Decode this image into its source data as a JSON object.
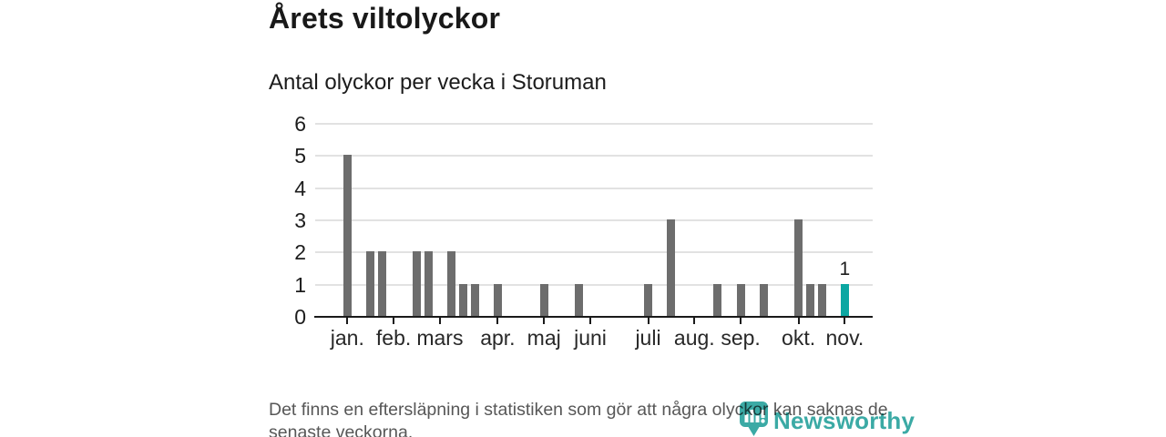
{
  "header": {
    "title": "Årets viltolyckor",
    "subtitle": "Antal olyckor per vecka i Storuman"
  },
  "chart_data": {
    "type": "bar",
    "title": "Årets viltolyckor",
    "subtitle": "Antal olyckor per vecka i Storuman",
    "x_unit": "vecka",
    "weeks_start": 1,
    "weeks_count": 44,
    "values": [
      5,
      0,
      2,
      2,
      0,
      0,
      2,
      2,
      0,
      2,
      1,
      1,
      0,
      1,
      0,
      0,
      0,
      1,
      0,
      0,
      1,
      0,
      0,
      0,
      0,
      0,
      1,
      0,
      3,
      0,
      0,
      0,
      1,
      0,
      1,
      0,
      1,
      0,
      0,
      3,
      1,
      1,
      0,
      1
    ],
    "month_ticks": [
      {
        "label": "jan.",
        "week": 1
      },
      {
        "label": "feb.",
        "week": 5
      },
      {
        "label": "mars",
        "week": 9
      },
      {
        "label": "apr.",
        "week": 14
      },
      {
        "label": "maj",
        "week": 18
      },
      {
        "label": "juni",
        "week": 22
      },
      {
        "label": "juli",
        "week": 27
      },
      {
        "label": "aug.",
        "week": 31
      },
      {
        "label": "sep.",
        "week": 35
      },
      {
        "label": "okt.",
        "week": 40
      },
      {
        "label": "nov.",
        "week": 44
      }
    ],
    "yticks": [
      0,
      1,
      2,
      3,
      4,
      5,
      6
    ],
    "ylim": [
      0,
      6
    ],
    "grid": "horizontal",
    "legend": "none",
    "bar_color": "#6d6d6d",
    "highlight": {
      "index": 43,
      "value": 1,
      "label": "1",
      "color": "#0ba7a2"
    }
  },
  "footer": {
    "note": "Det finns en eftersläpning i statistiken som gör att några olyckor kan saknas de senaste veckorna."
  },
  "logo": {
    "text": "Newsworthy",
    "icon": "newsworthy-pin-barchart-icon",
    "color": "#2aa39d"
  }
}
